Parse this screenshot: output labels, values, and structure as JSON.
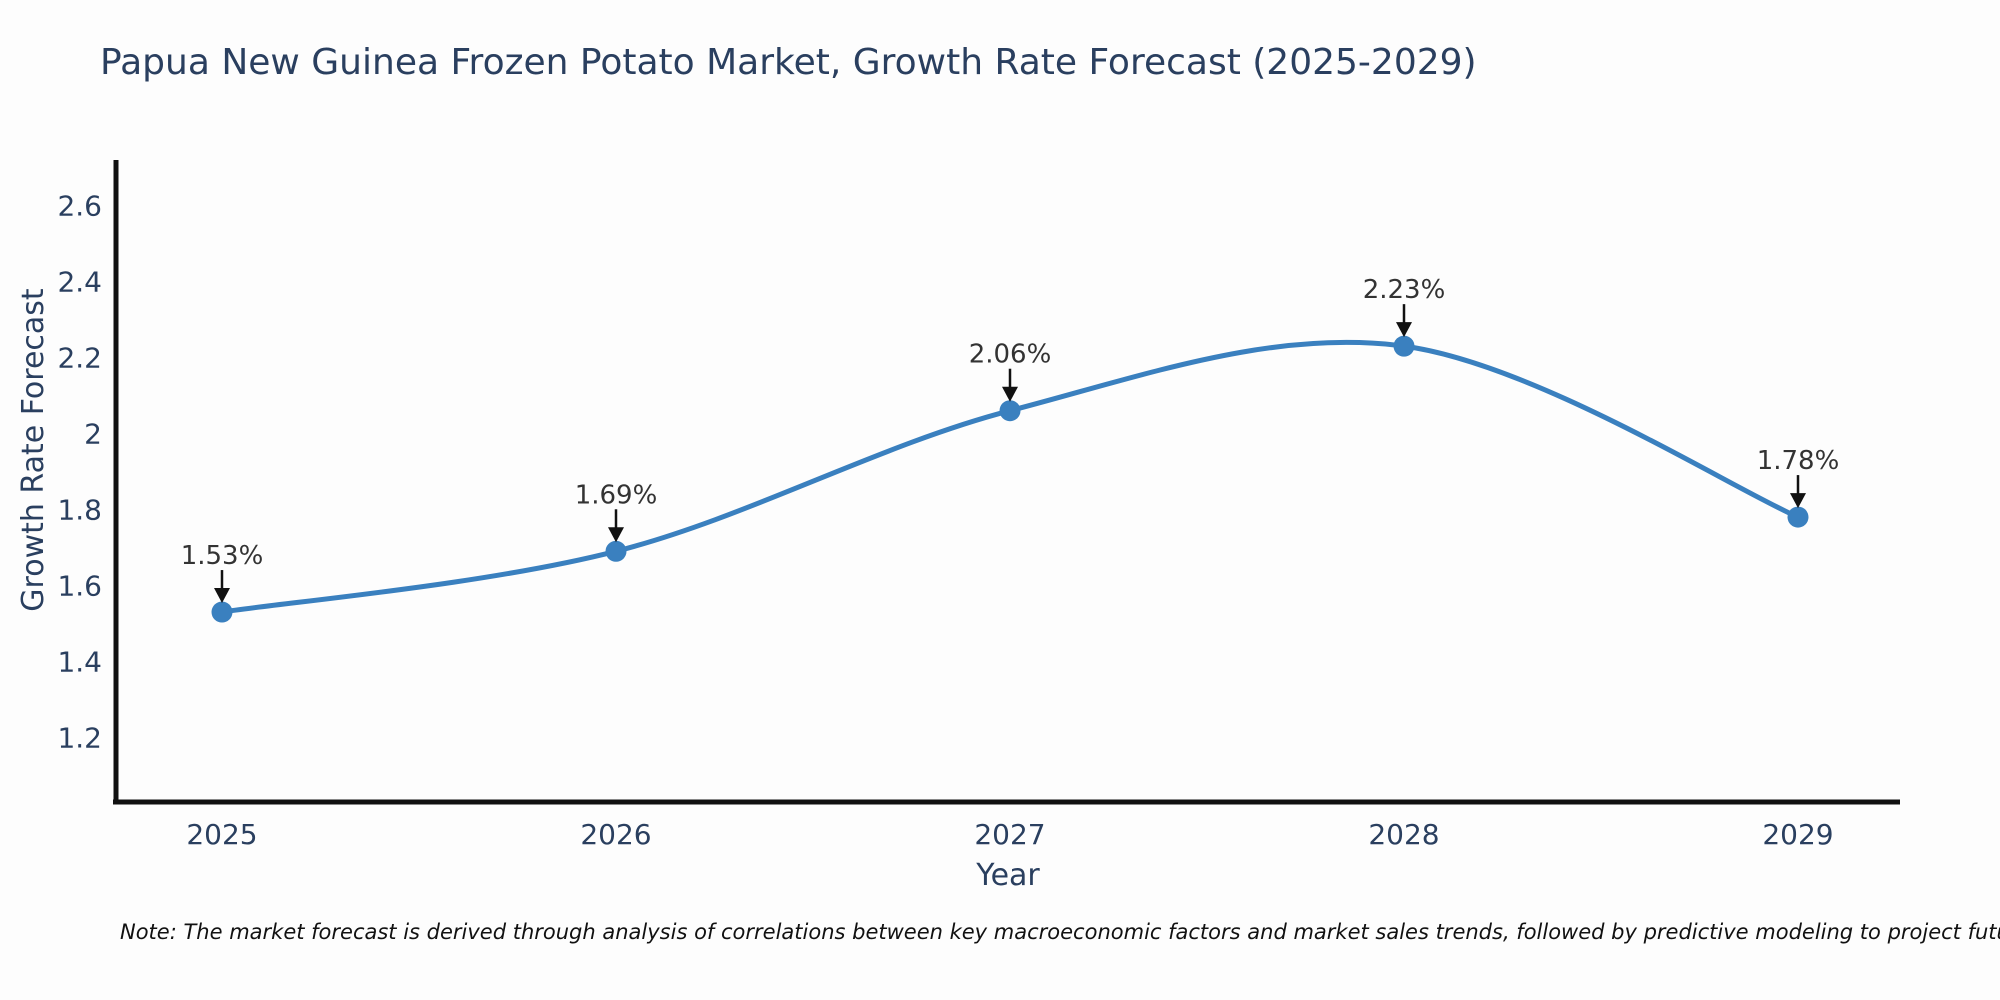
{
  "title": "Papua New Guinea Frozen Potato Market, Growth Rate Forecast (2025-2029)",
  "note": "Note: The market forecast is derived through analysis of correlations between key macroeconomic factors and market sales trends, followed by predictive modeling to project future sales",
  "chart_data": {
    "type": "line",
    "title": "Papua New Guinea Frozen Potato Market, Growth Rate Forecast (2025-2029)",
    "xlabel": "Year",
    "ylabel": "Growth Rate Forecast",
    "x": [
      2025,
      2026,
      2027,
      2028,
      2029
    ],
    "x_tick_labels": [
      "2025",
      "2026",
      "2027",
      "2028",
      "2029"
    ],
    "series": [
      {
        "name": "Growth Rate Forecast",
        "values": [
          1.53,
          1.69,
          2.06,
          2.23,
          1.78
        ]
      }
    ],
    "point_labels": [
      "1.53%",
      "1.69%",
      "2.06%",
      "2.23%",
      "1.78%"
    ],
    "ylim": [
      1.03,
      2.72
    ],
    "yticks": [
      1.2,
      1.4,
      1.6,
      1.8,
      2,
      2.2,
      2.4,
      2.6
    ],
    "ytick_labels": [
      "1.2",
      "1.4",
      "1.6",
      "1.8",
      "2",
      "2.2",
      "2.4",
      "2.6"
    ],
    "grid": false,
    "legend_position": "none",
    "line_shape": "spline",
    "annotation_style": "down-arrow",
    "colors": {
      "line": "#3a80bf",
      "marker": "#3a80bf",
      "axis": "#111111",
      "tick_text": "#2a3f5f",
      "annotation_text": "#333333",
      "annotation_arrow": "#111111",
      "background": "#fdfdfd"
    }
  }
}
